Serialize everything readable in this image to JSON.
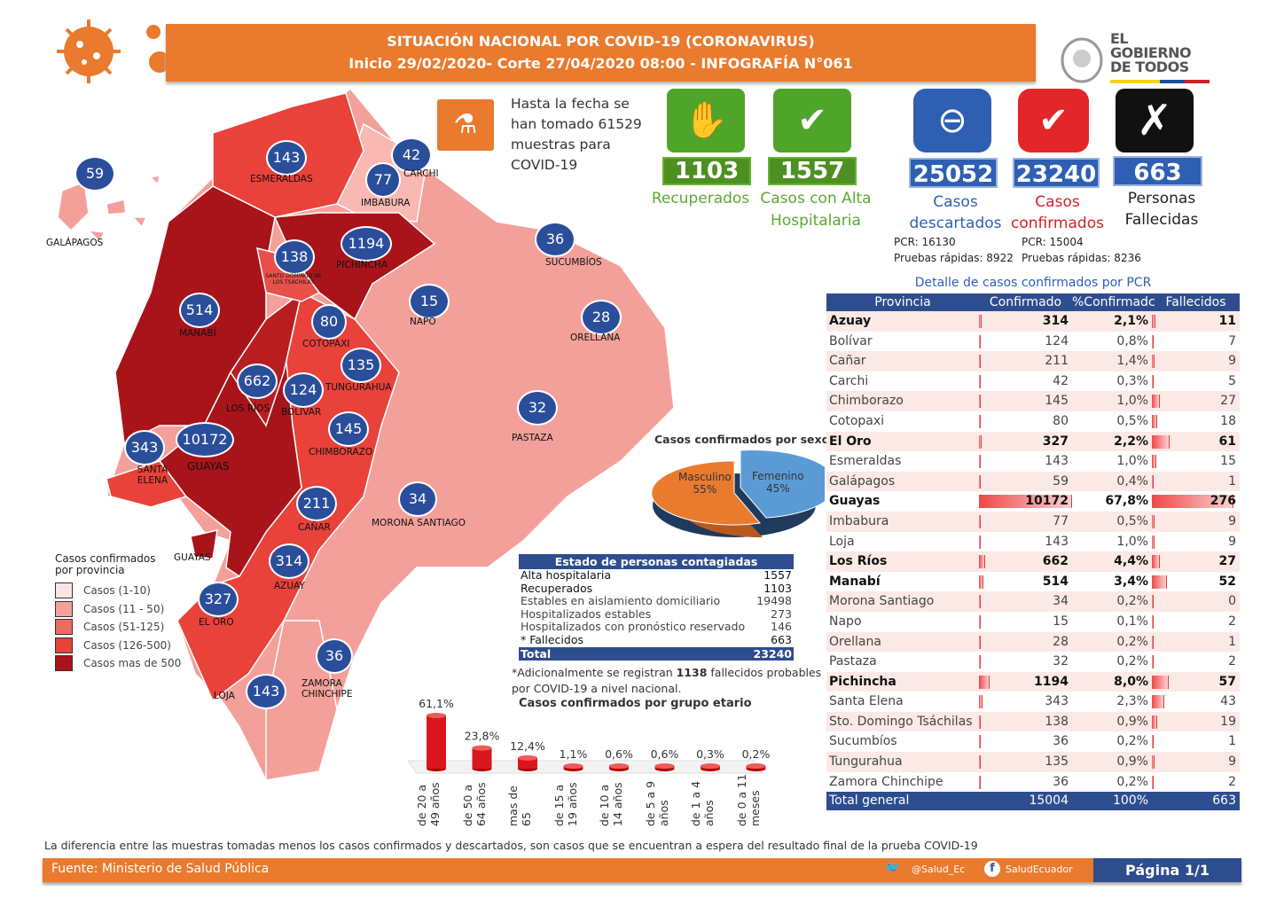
{
  "header": {
    "line1": "SITUACIÓN NACIONAL POR  COVID-19 (CORONAVIRUS)",
    "line2": "Inicio 29/02/2020- Corte 27/04/2020 08:00  - INFOGRAFÍA N°061"
  },
  "logo": {
    "line1": "EL",
    "line2": "GOBIERNO",
    "line3": "DE TODOS"
  },
  "muestras": {
    "l1": "Hasta la fecha se",
    "l2": "han tomado 61529",
    "l3": "muestras  para",
    "l4": "COVID-19"
  },
  "stats": {
    "recuperados": {
      "value": "1103",
      "label": "Recuperados"
    },
    "alta": {
      "value": "1557",
      "label1": "Casos con Alta",
      "label2": "Hospitalaria"
    },
    "descartados": {
      "value": "25052",
      "label1": "Casos",
      "label2": "descartados",
      "pcr": "PCR: 16130",
      "rapidas": "Pruebas rápidas: 8922"
    },
    "confirmados": {
      "value": "23240",
      "label1": "Casos",
      "label2": "confirmados",
      "pcr": "PCR: 15004",
      "rapidas": "Pruebas rápidas: 8236"
    },
    "fallecidas": {
      "value": "663",
      "label1": "Personas",
      "label2": "Fallecidas"
    }
  },
  "table": {
    "title": "Detalle de casos confirmados por PCR",
    "headers": [
      "Provincia",
      "Confirmado",
      "%Confirmadc",
      "Fallecidos"
    ],
    "rows": [
      {
        "p": "Azuay",
        "c": "314",
        "pct": "2,1%",
        "f": "11",
        "b": true
      },
      {
        "p": "Bolívar",
        "c": "124",
        "pct": "0,8%",
        "f": "7"
      },
      {
        "p": "Cañar",
        "c": "211",
        "pct": "1,4%",
        "f": "9"
      },
      {
        "p": "Carchi",
        "c": "42",
        "pct": "0,3%",
        "f": "5"
      },
      {
        "p": "Chimborazo",
        "c": "145",
        "pct": "1,0%",
        "f": "27"
      },
      {
        "p": "Cotopaxi",
        "c": "80",
        "pct": "0,5%",
        "f": "18"
      },
      {
        "p": "El Oro",
        "c": "327",
        "pct": "2,2%",
        "f": "61",
        "b": true
      },
      {
        "p": "Esmeraldas",
        "c": "143",
        "pct": "1,0%",
        "f": "15"
      },
      {
        "p": "Galápagos",
        "c": "59",
        "pct": "0,4%",
        "f": "1"
      },
      {
        "p": "Guayas",
        "c": "10172",
        "pct": "67,8%",
        "f": "276",
        "b": true
      },
      {
        "p": "Imbabura",
        "c": "77",
        "pct": "0,5%",
        "f": "9"
      },
      {
        "p": "Loja",
        "c": "143",
        "pct": "1,0%",
        "f": "9"
      },
      {
        "p": "Los Ríos",
        "c": "662",
        "pct": "4,4%",
        "f": "27",
        "b": true
      },
      {
        "p": "Manabí",
        "c": "514",
        "pct": "3,4%",
        "f": "52",
        "b": true
      },
      {
        "p": "Morona Santiago",
        "c": "34",
        "pct": "0,2%",
        "f": "0"
      },
      {
        "p": "Napo",
        "c": "15",
        "pct": "0,1%",
        "f": "2"
      },
      {
        "p": "Orellana",
        "c": "28",
        "pct": "0,2%",
        "f": "1"
      },
      {
        "p": "Pastaza",
        "c": "32",
        "pct": "0,2%",
        "f": "2"
      },
      {
        "p": "Pichincha",
        "c": "1194",
        "pct": "8,0%",
        "f": "57",
        "b": true
      },
      {
        "p": "Santa Elena",
        "c": "343",
        "pct": "2,3%",
        "f": "43"
      },
      {
        "p": "Sto. Domingo Tsáchilas",
        "c": "138",
        "pct": "0,9%",
        "f": "19"
      },
      {
        "p": "Sucumbíos",
        "c": "36",
        "pct": "0,2%",
        "f": "1"
      },
      {
        "p": "Tungurahua",
        "c": "135",
        "pct": "0,9%",
        "f": "9"
      },
      {
        "p": "Zamora Chinchipe",
        "c": "36",
        "pct": "0,2%",
        "f": "2"
      }
    ],
    "total": {
      "p": "Total general",
      "c": "15004",
      "pct": "100%",
      "f": "663"
    }
  },
  "map": {
    "galapagos": {
      "n": "59",
      "l": "GALÁPAGOS"
    },
    "esmeraldas": {
      "n": "143",
      "l": "ESMERALDAS"
    },
    "carchi": {
      "n": "42",
      "l": "CARCHI"
    },
    "imbabura": {
      "n": "77",
      "l": "IMBABURA"
    },
    "pichincha": {
      "n": "1194",
      "l": "PICHINCHA"
    },
    "stodomingo": {
      "n": "138",
      "l": "SANTO DOMINGO DE LOS TSÁCHILAS"
    },
    "sucumbios": {
      "n": "36",
      "l": "SUCUMBÍOS"
    },
    "napo": {
      "n": "15",
      "l": "NAPO"
    },
    "orellana": {
      "n": "28",
      "l": "ORELLANA"
    },
    "manabi": {
      "n": "514",
      "l": "MANABÍ"
    },
    "cotopaxi": {
      "n": "80",
      "l": "COTOPAXI"
    },
    "tungurahua": {
      "n": "135",
      "l": "TUNGURAHUA"
    },
    "losrios": {
      "n": "662",
      "l": "LOS RÍOS"
    },
    "bolivar": {
      "n": "124",
      "l": "BOLIVAR"
    },
    "pastaza": {
      "n": "32",
      "l": "PASTAZA"
    },
    "chimborazo": {
      "n": "145",
      "l": "CHIMBORAZO"
    },
    "santaelena": {
      "n": "343",
      "l": "SANTA ELENA"
    },
    "guayas": {
      "n": "10172",
      "l": "GUAYAS"
    },
    "canar": {
      "n": "211",
      "l": "CAÑAR"
    },
    "morona": {
      "n": "34",
      "l": "MORONA SANTIAGO"
    },
    "azuay": {
      "n": "314",
      "l": "AZUAY"
    },
    "eloro": {
      "n": "327",
      "l": "EL ORO"
    },
    "zamora": {
      "n": "36",
      "l": "ZAMORA CHINCHIPE"
    },
    "loja": {
      "n": "143",
      "l": "LOJA"
    },
    "guayas2": "GUAYAS"
  },
  "legend": {
    "title1": "Casos confirmados",
    "title2": "por provincia",
    "items": [
      {
        "label": "Casos (1-10)",
        "color": "#FCE4E1"
      },
      {
        "label": "Casos (11 - 50)",
        "color": "#F4A09A"
      },
      {
        "label": "Casos (51-125)",
        "color": "#EE6B62"
      },
      {
        "label": "Casos (126-500)",
        "color": "#E8423A"
      },
      {
        "label": "Casos mas de 500",
        "color": "#A8141A"
      }
    ]
  },
  "sexo": {
    "title": "Casos confirmados por sexo",
    "masc_label": "Masculino",
    "masc_pct": "55%",
    "fem_label": "Femenino",
    "fem_pct": "45%"
  },
  "estado": {
    "title": "Estado de personas contagiadas",
    "rows": [
      {
        "l": "Alta hospitalaria",
        "v": "1557",
        "b": true
      },
      {
        "l": "Recuperados",
        "v": "1103",
        "b": true
      },
      {
        "l": "Estables en aislamiento domiciliario",
        "v": "19498"
      },
      {
        "l": "Hospitalizados estables",
        "v": "273"
      },
      {
        "l": "Hospitalizados con pronóstico reservado",
        "v": "146"
      },
      {
        "l": "* Fallecidos",
        "v": "663",
        "b": true
      }
    ],
    "total_l": "Total",
    "total_v": "23240",
    "note1": "*Adicionalmente se registran ",
    "note_bold": "1138",
    "note2": " fallecidos probables",
    "note3": "por COVID-19 a nivel nacional."
  },
  "chart_data": {
    "type": "bar",
    "title": "Casos confirmados por grupo etario",
    "categories": [
      "de 20 a 49 años",
      "de 50 a 64 años",
      "mas de 65",
      "de 15 a 19 años",
      "de 10 a 14 años",
      "de 5 a 9 años",
      "de 1 a 4 años",
      "de 0 a 11 meses"
    ],
    "values": [
      61.1,
      23.8,
      12.4,
      1.1,
      0.6,
      0.6,
      0.3,
      0.2
    ],
    "labels": [
      "61,1%",
      "23,8%",
      "12,4%",
      "1,1%",
      "0,6%",
      "0,6%",
      "0,3%",
      "0,2%"
    ],
    "ylim": [
      0,
      70
    ]
  },
  "footer": {
    "note": "La diferencia entre las muestras tomadas menos los casos confirmados y descartados, son casos que se encuentran a espera del resultado final de la prueba COVID-19",
    "source": "Fuente: Ministerio de Salud Pública",
    "twitter": "@Salud_Ec",
    "facebook": "SaludEcuador",
    "page": "Página 1/1"
  }
}
